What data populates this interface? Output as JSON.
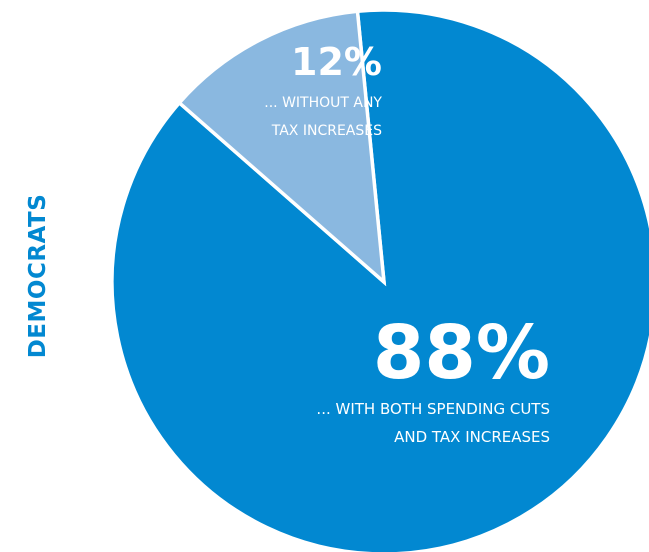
{
  "group_label": "DEMOCRATS",
  "chart_data": {
    "type": "pie",
    "slices": [
      {
        "value": 88,
        "percent_label": "88%",
        "label_lines": [
          "... WITH BOTH SPENDING CUTS",
          "AND TAX INCREASES"
        ],
        "color": "#0288d1"
      },
      {
        "value": 12,
        "percent_label": "12%",
        "label_lines": [
          "... WITHOUT ANY",
          "TAX INCREASES"
        ],
        "color": "#8ab8e0"
      }
    ],
    "separator_color": "#ffffff"
  }
}
